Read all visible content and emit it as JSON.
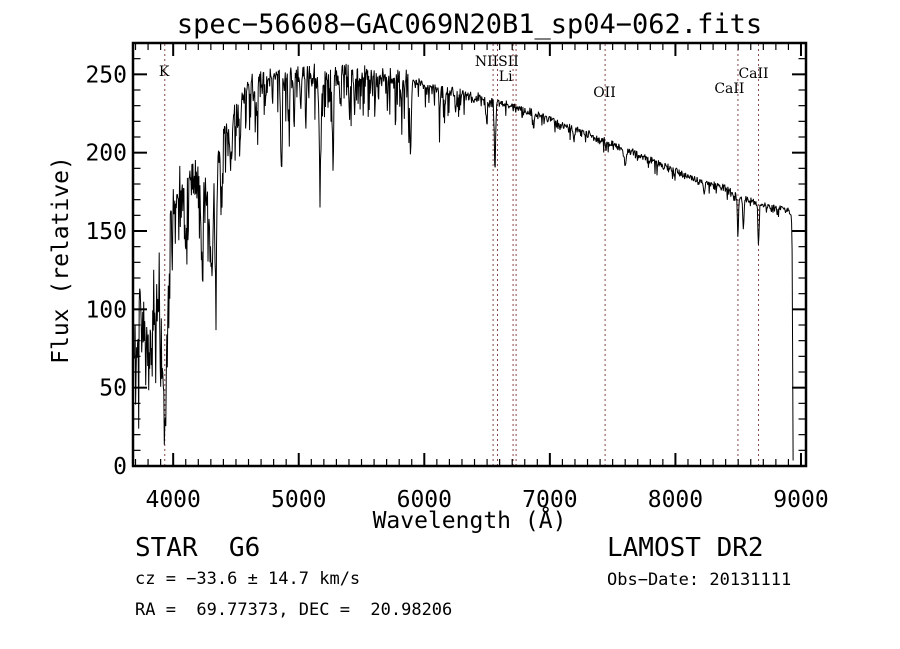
{
  "page": {
    "background": "#ffffff",
    "text_color": "#000000"
  },
  "chart_data": {
    "type": "line",
    "title": "spec−56608−GAC069N20B1_sp04−062.fits",
    "xlabel": "Wavelength (Å)",
    "ylabel": "Flux (relative)",
    "xlim": [
      3680,
      9040
    ],
    "ylim": [
      0,
      270
    ],
    "x_major_ticks": [
      4000,
      5000,
      6000,
      7000,
      8000,
      9000
    ],
    "x_minor_step": 100,
    "y_major_ticks": [
      0,
      50,
      100,
      150,
      200,
      250
    ],
    "y_minor_step": 10,
    "grid": false,
    "legend": false,
    "line_color": "#000000",
    "frame_color": "#000000",
    "marker_line_color": "#8b4545",
    "noise_seed": 20131111,
    "marker_wavelengths": [
      3933,
      6548,
      6583,
      6707,
      6731,
      7440,
      8498,
      8662
    ],
    "marker_labels": [
      {
        "text": "K",
        "wavelength": 3928,
        "y": 76
      },
      {
        "text": "NIISII",
        "wavelength": 6578,
        "y": 66
      },
      {
        "text": "Li",
        "wavelength": 6648,
        "y": 81
      },
      {
        "text": "OII",
        "wavelength": 7435,
        "y": 97
      },
      {
        "text": "CaII",
        "wavelength": 8430,
        "y": 93
      },
      {
        "text": "CaII",
        "wavelength": 8622,
        "y": 78
      }
    ],
    "continuum": [
      [
        3690,
        12
      ],
      [
        3696,
        88
      ],
      [
        3703,
        52
      ],
      [
        3712,
        96
      ],
      [
        3722,
        66
      ],
      [
        3734,
        102
      ],
      [
        3748,
        62
      ],
      [
        3762,
        104
      ],
      [
        3776,
        58
      ],
      [
        3790,
        96
      ],
      [
        3804,
        70
      ],
      [
        3818,
        100
      ],
      [
        3832,
        74
      ],
      [
        3846,
        108
      ],
      [
        3860,
        76
      ],
      [
        3874,
        112
      ],
      [
        3888,
        118
      ],
      [
        3900,
        70
      ],
      [
        3912,
        84
      ],
      [
        3924,
        62
      ],
      [
        3933,
        58
      ],
      [
        3944,
        74
      ],
      [
        3958,
        98
      ],
      [
        3972,
        128
      ],
      [
        3986,
        150
      ],
      [
        4000,
        168
      ],
      [
        4015,
        182
      ],
      [
        4040,
        188
      ],
      [
        4070,
        192
      ],
      [
        4100,
        186
      ],
      [
        4130,
        190
      ],
      [
        4160,
        188
      ],
      [
        4190,
        192
      ],
      [
        4220,
        187
      ],
      [
        4250,
        183
      ],
      [
        4280,
        177
      ],
      [
        4310,
        180
      ],
      [
        4345,
        196
      ],
      [
        4380,
        208
      ],
      [
        4420,
        218
      ],
      [
        4460,
        226
      ],
      [
        4500,
        232
      ],
      [
        4550,
        239
      ],
      [
        4600,
        244
      ],
      [
        4650,
        247
      ],
      [
        4700,
        249
      ],
      [
        4750,
        251
      ],
      [
        4800,
        252
      ],
      [
        4860,
        251
      ],
      [
        4920,
        252
      ],
      [
        4980,
        253
      ],
      [
        5040,
        252
      ],
      [
        5100,
        253
      ],
      [
        5160,
        252
      ],
      [
        5220,
        251
      ],
      [
        5280,
        252
      ],
      [
        5340,
        253
      ],
      [
        5400,
        254
      ],
      [
        5460,
        253
      ],
      [
        5520,
        251
      ],
      [
        5580,
        250
      ],
      [
        5640,
        250
      ],
      [
        5700,
        250
      ],
      [
        5760,
        249
      ],
      [
        5820,
        250
      ],
      [
        5880,
        248
      ],
      [
        5940,
        246
      ],
      [
        6000,
        244
      ],
      [
        6060,
        242
      ],
      [
        6120,
        241
      ],
      [
        6180,
        240
      ],
      [
        6240,
        239
      ],
      [
        6300,
        238
      ],
      [
        6360,
        237
      ],
      [
        6420,
        236
      ],
      [
        6480,
        235
      ],
      [
        6540,
        234
      ],
      [
        6600,
        233
      ],
      [
        6720,
        230
      ],
      [
        6840,
        227
      ],
      [
        6960,
        223
      ],
      [
        7080,
        219
      ],
      [
        7200,
        216
      ],
      [
        7320,
        212
      ],
      [
        7440,
        208
      ],
      [
        7560,
        204
      ],
      [
        7680,
        200
      ],
      [
        7800,
        196
      ],
      [
        7920,
        192
      ],
      [
        8040,
        188
      ],
      [
        8160,
        184
      ],
      [
        8280,
        181
      ],
      [
        8400,
        178
      ],
      [
        8470,
        174
      ],
      [
        8530,
        172
      ],
      [
        8590,
        170
      ],
      [
        8650,
        169
      ],
      [
        8700,
        167
      ],
      [
        8760,
        166
      ],
      [
        8820,
        165
      ],
      [
        8880,
        164
      ],
      [
        8905,
        163
      ],
      [
        8920,
        160
      ],
      [
        8928,
        152
      ],
      [
        8932,
        96
      ],
      [
        8935,
        30
      ],
      [
        8937,
        3
      ]
    ],
    "absorption_features": [
      [
        3933,
        28,
        10
      ],
      [
        4101,
        42,
        7
      ],
      [
        4227,
        42,
        6
      ],
      [
        4305,
        50,
        11
      ],
      [
        4340,
        78,
        6
      ],
      [
        4383,
        36,
        6
      ],
      [
        4455,
        28,
        6
      ],
      [
        4531,
        26,
        6
      ],
      [
        4668,
        24,
        6
      ],
      [
        4861,
        56,
        5
      ],
      [
        4920,
        24,
        5
      ],
      [
        5015,
        22,
        5
      ],
      [
        5170,
        60,
        8
      ],
      [
        5270,
        36,
        6
      ],
      [
        5330,
        24,
        5
      ],
      [
        5406,
        26,
        5
      ],
      [
        5446,
        22,
        5
      ],
      [
        5890,
        50,
        6
      ],
      [
        6122,
        14,
        5
      ],
      [
        6162,
        13,
        5
      ],
      [
        6250,
        12,
        5
      ],
      [
        6495,
        13,
        5
      ],
      [
        6563,
        44,
        5
      ],
      [
        6870,
        10,
        6
      ],
      [
        7190,
        7,
        6
      ],
      [
        7600,
        10,
        7
      ],
      [
        8230,
        7,
        6
      ],
      [
        8498,
        24,
        5
      ],
      [
        8542,
        19,
        5
      ],
      [
        8662,
        24,
        5
      ]
    ],
    "noise_segments": [
      [
        3680,
        3990,
        26,
        8,
        0.12,
        24
      ],
      [
        3990,
        4330,
        10,
        20,
        0.3,
        40
      ],
      [
        4330,
        4620,
        7,
        14,
        0.25,
        26
      ],
      [
        4620,
        5880,
        5,
        11,
        0.28,
        30
      ],
      [
        5880,
        6600,
        3,
        6,
        0.18,
        15
      ],
      [
        6600,
        7500,
        2.2,
        3.5,
        0.12,
        7
      ],
      [
        7500,
        8900,
        2,
        2.8,
        0.1,
        6
      ],
      [
        8900,
        8945,
        1.2,
        1,
        0,
        0
      ]
    ]
  },
  "footer": {
    "class_label": "STAR  G6",
    "survey": "LAMOST DR2",
    "cz": "cz = −33.6 ± 14.7 km/s",
    "obs_date": "Obs−Date: 20131111",
    "coords": "RA =  69.77373, DEC =  20.98206"
  }
}
